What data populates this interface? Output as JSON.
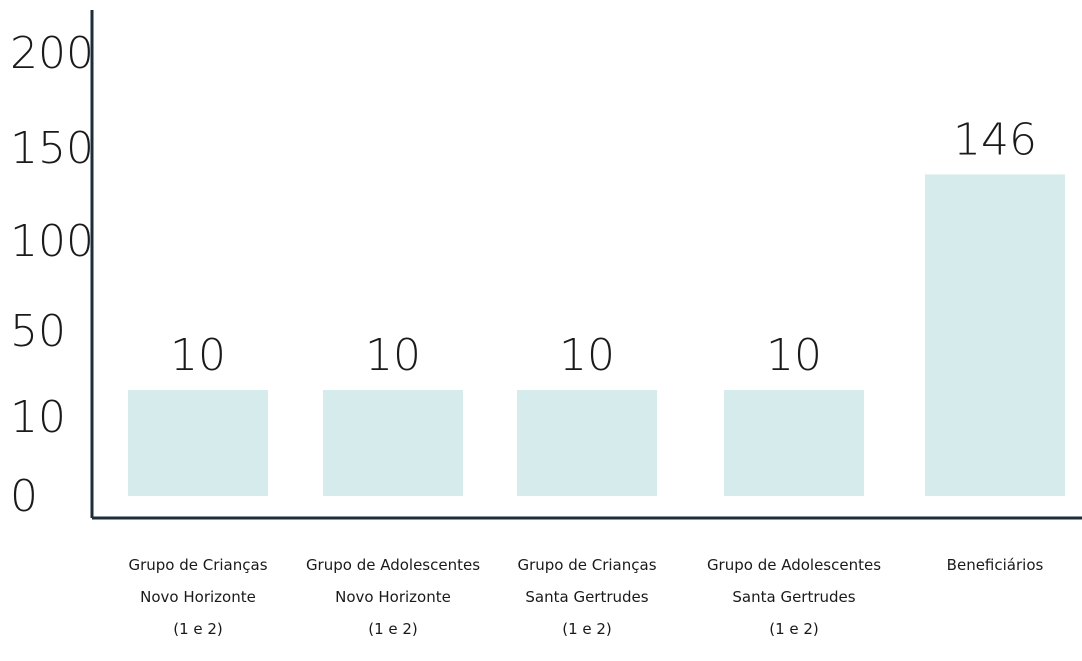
{
  "chart_data": {
    "type": "bar",
    "categories": [
      [
        "Grupo de Crianças",
        "Novo Horizonte",
        "(1 e 2)"
      ],
      [
        "Grupo de Adolescentes",
        "Novo Horizonte",
        "(1 e 2)"
      ],
      [
        "Grupo de Crianças",
        "Santa Gertrudes",
        "(1 e 2)"
      ],
      [
        "Grupo de Adolescentes",
        "Santa Gertrudes",
        "(1 e 2)"
      ],
      [
        "Beneficiários"
      ]
    ],
    "values": [
      10,
      10,
      10,
      10,
      146
    ],
    "data_labels": [
      "10",
      "10",
      "10",
      "10",
      "146"
    ],
    "y_ticks": [
      "0",
      "10",
      "50",
      "100",
      "150",
      "200"
    ],
    "ylim": [
      0,
      200
    ],
    "y_scale": "non-linear",
    "grid": false,
    "legend": "none",
    "colors": {
      "bar": "#d6ecec",
      "axis": "#1e2d3a",
      "text": "#1a1a1a"
    }
  }
}
